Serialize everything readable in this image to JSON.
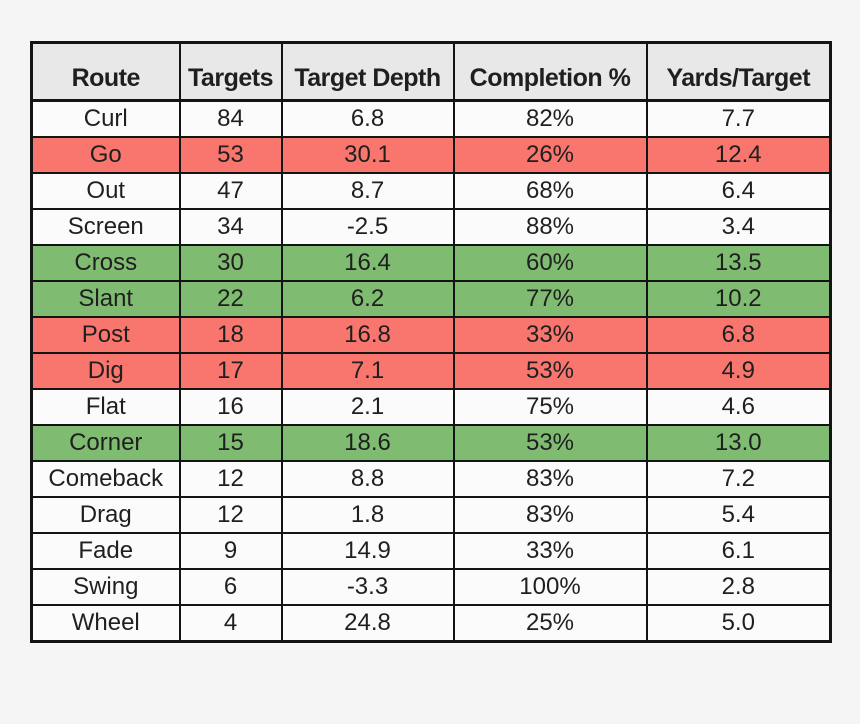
{
  "colors": {
    "page_bg": "#f5f5f6",
    "header_bg": "#e8e8e8",
    "row_bg": "#fbfbfb",
    "red_highlight": "#f8766d",
    "green_highlight": "#80bb72",
    "border": "#141414",
    "text": "#1f1f1f"
  },
  "chart_data": {
    "type": "table",
    "title": "",
    "columns": [
      "Route",
      "Targets",
      "Target Depth",
      "Completion %",
      "Yards/Target"
    ],
    "column_keys": [
      "route",
      "targets",
      "target-depth",
      "completion-pct",
      "yards-per-target"
    ],
    "rows": [
      {
        "cells": [
          "Curl",
          "84",
          "6.8",
          "82%",
          "7.7"
        ],
        "highlight": "none"
      },
      {
        "cells": [
          "Go",
          "53",
          "30.1",
          "26%",
          "12.4"
        ],
        "highlight": "red"
      },
      {
        "cells": [
          "Out",
          "47",
          "8.7",
          "68%",
          "6.4"
        ],
        "highlight": "none"
      },
      {
        "cells": [
          "Screen",
          "34",
          "-2.5",
          "88%",
          "3.4"
        ],
        "highlight": "none"
      },
      {
        "cells": [
          "Cross",
          "30",
          "16.4",
          "60%",
          "13.5"
        ],
        "highlight": "green"
      },
      {
        "cells": [
          "Slant",
          "22",
          "6.2",
          "77%",
          "10.2"
        ],
        "highlight": "green"
      },
      {
        "cells": [
          "Post",
          "18",
          "16.8",
          "33%",
          "6.8"
        ],
        "highlight": "red"
      },
      {
        "cells": [
          "Dig",
          "17",
          "7.1",
          "53%",
          "4.9"
        ],
        "highlight": "red"
      },
      {
        "cells": [
          "Flat",
          "16",
          "2.1",
          "75%",
          "4.6"
        ],
        "highlight": "none"
      },
      {
        "cells": [
          "Corner",
          "15",
          "18.6",
          "53%",
          "13.0"
        ],
        "highlight": "green"
      },
      {
        "cells": [
          "Comeback",
          "12",
          "8.8",
          "83%",
          "7.2"
        ],
        "highlight": "none"
      },
      {
        "cells": [
          "Drag",
          "12",
          "1.8",
          "83%",
          "5.4"
        ],
        "highlight": "none"
      },
      {
        "cells": [
          "Fade",
          "9",
          "14.9",
          "33%",
          "6.1"
        ],
        "highlight": "none"
      },
      {
        "cells": [
          "Swing",
          "6",
          "-3.3",
          "100%",
          "2.8"
        ],
        "highlight": "none"
      },
      {
        "cells": [
          "Wheel",
          "4",
          "24.8",
          "25%",
          "5.0"
        ],
        "highlight": "none"
      }
    ],
    "legend": "off",
    "grid": "full black cell borders"
  }
}
